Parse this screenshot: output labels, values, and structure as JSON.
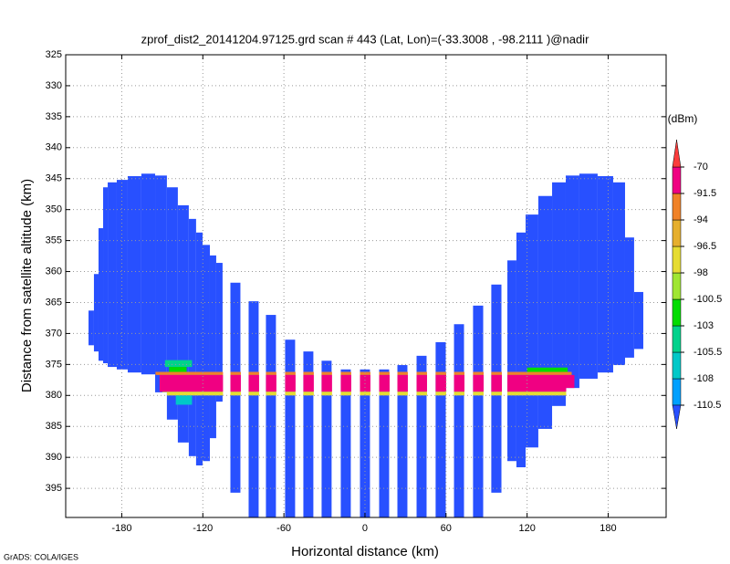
{
  "chart_data": {
    "type": "swath",
    "title": "zprof_dist2_20141204.97125.grd  scan # 443  (Lat, Lon)=(-33.3008 , -98.2111 )@nadir",
    "x_label": "Horizontal distance (km)",
    "y_label": "Distance from satellite altitude (km)",
    "footnote": "GrADS: COLA/IGES",
    "xlim": [
      -221.5,
      222.9
    ],
    "ylim": [
      325,
      399.7
    ],
    "y_reversed": true,
    "xticks": [
      -180,
      -120,
      -60,
      0,
      60,
      120,
      180
    ],
    "yticks": [
      325,
      330,
      335,
      340,
      345,
      350,
      355,
      360,
      365,
      370,
      375,
      380,
      385,
      390,
      395
    ],
    "grid": true,
    "swath_value": -112,
    "columns": [
      {
        "x": [
          -204.6,
          -200.6
        ],
        "y": [
          366.3,
          371.9
        ]
      },
      {
        "x": [
          -200.6,
          -197.2
        ],
        "y": [
          360.4,
          372.9
        ]
      },
      {
        "x": [
          -197.2,
          -193.8
        ],
        "y": [
          353.0,
          374.4
        ]
      },
      {
        "x": [
          -193.8,
          -190.4
        ],
        "y": [
          346.4,
          374.8
        ]
      },
      {
        "x": [
          -190.4,
          -183.7
        ],
        "y": [
          345.6,
          375.4
        ]
      },
      {
        "x": [
          -183.7,
          -175.6
        ],
        "y": [
          345.2,
          375.8
        ]
      },
      {
        "x": [
          -175.6,
          -165.5
        ],
        "y": [
          344.6,
          376.3
        ]
      },
      {
        "x": [
          -165.5,
          -155.3
        ],
        "y": [
          344.2,
          376.6
        ]
      },
      {
        "x": [
          -155.3,
          -146.6
        ],
        "y": [
          344.5,
          379.5
        ]
      },
      {
        "x": [
          -146.6,
          -138.5
        ],
        "y": [
          346.4,
          383.9
        ]
      },
      {
        "x": [
          -138.5,
          -130.4
        ],
        "y": [
          349.3,
          387.6
        ]
      },
      {
        "x": [
          -130.4,
          -125.0
        ],
        "y": [
          351.5,
          389.8
        ]
      },
      {
        "x": [
          -125.0,
          -120.2
        ],
        "y": [
          353.7,
          391.3
        ]
      },
      {
        "x": [
          -120.2,
          -114.8
        ],
        "y": [
          355.7,
          390.6
        ]
      },
      {
        "x": [
          -114.8,
          -110.1
        ],
        "y": [
          357.4,
          386.9
        ]
      },
      {
        "x": [
          -110.1,
          -105.4
        ],
        "y": [
          358.6,
          381.0
        ]
      },
      {
        "x": [
          -99.6,
          -92.2
        ],
        "y": [
          361.8,
          395.7
        ]
      },
      {
        "x": [
          -86.1,
          -78.7
        ],
        "y": [
          364.8,
          399.7
        ]
      },
      {
        "x": [
          -73.3,
          -65.9
        ],
        "y": [
          367.0,
          399.7
        ]
      },
      {
        "x": [
          -59.1,
          -51.7
        ],
        "y": [
          371.0,
          399.7
        ]
      },
      {
        "x": [
          -45.6,
          -38.2
        ],
        "y": [
          372.9,
          399.7
        ]
      },
      {
        "x": [
          -32.1,
          -24.7
        ],
        "y": [
          374.4,
          399.7
        ]
      },
      {
        "x": [
          -17.9,
          -10.5
        ],
        "y": [
          375.8,
          399.7
        ]
      },
      {
        "x": [
          -3.7,
          3.7
        ],
        "y": [
          375.8,
          399.7
        ]
      },
      {
        "x": [
          10.5,
          17.9
        ],
        "y": [
          375.8,
          399.7
        ]
      },
      {
        "x": [
          24.0,
          31.4
        ],
        "y": [
          375.1,
          399.7
        ]
      },
      {
        "x": [
          38.2,
          45.6
        ],
        "y": [
          373.6,
          399.7
        ]
      },
      {
        "x": [
          52.3,
          59.8
        ],
        "y": [
          371.4,
          399.7
        ]
      },
      {
        "x": [
          65.9,
          73.3
        ],
        "y": [
          368.5,
          399.7
        ]
      },
      {
        "x": [
          80.0,
          87.5
        ],
        "y": [
          365.5,
          399.7
        ]
      },
      {
        "x": [
          93.5,
          101.0
        ],
        "y": [
          362.1,
          395.7
        ]
      },
      {
        "x": [
          105.4,
          112.1
        ],
        "y": [
          358.2,
          390.6
        ]
      },
      {
        "x": [
          112.1,
          118.9
        ],
        "y": [
          353.7,
          391.6
        ]
      },
      {
        "x": [
          118.9,
          128.3
        ],
        "y": [
          350.8,
          388.4
        ]
      },
      {
        "x": [
          128.3,
          138.5
        ],
        "y": [
          347.8,
          385.4
        ]
      },
      {
        "x": [
          138.5,
          148.6
        ],
        "y": [
          345.6,
          381.7
        ]
      },
      {
        "x": [
          148.6,
          158.7
        ],
        "y": [
          344.5,
          378.8
        ]
      },
      {
        "x": [
          158.7,
          172.2
        ],
        "y": [
          344.2,
          377.3
        ]
      },
      {
        "x": [
          172.2,
          183.7
        ],
        "y": [
          344.6,
          376.3
        ]
      },
      {
        "x": [
          183.7,
          192.5
        ],
        "y": [
          345.6,
          375.1
        ]
      },
      {
        "x": [
          192.5,
          199.2
        ],
        "y": [
          354.5,
          373.9
        ]
      },
      {
        "x": [
          199.2,
          206.0
        ],
        "y": [
          363.3,
          372.5
        ]
      }
    ],
    "cells": [
      {
        "x": [
          -155,
          153
        ],
        "y": [
          376.2,
          376.7
        ],
        "value": -93
      },
      {
        "x": [
          -152,
          155
        ],
        "y": [
          376.7,
          379.4
        ],
        "value": -85
      },
      {
        "x": [
          -150,
          150
        ],
        "y": [
          379.4,
          380.0
        ],
        "value": -97
      },
      {
        "x": [
          -148,
          -128
        ],
        "y": [
          374.3,
          375.4
        ],
        "value": -104
      },
      {
        "x": [
          -145,
          -132
        ],
        "y": [
          375.4,
          376.2
        ],
        "value": -101
      },
      {
        "x": [
          -140,
          -128
        ],
        "y": [
          380.0,
          381.5
        ],
        "value": -107
      },
      {
        "x": [
          120,
          150
        ],
        "y": [
          375.5,
          376.2
        ],
        "value": -101
      }
    ],
    "colorbar": {
      "label": "(dBm)",
      "levels": [
        -110.5,
        -108,
        -105.5,
        -103,
        -100.5,
        -98,
        -96.5,
        -94,
        -91.5,
        -70
      ],
      "colors": [
        "#2850ff",
        "#00a0ff",
        "#00c8c8",
        "#00d28c",
        "#00dc00",
        "#a0e632",
        "#e6dc32",
        "#e6af2d",
        "#f08228",
        "#f00082",
        "#fa3c3c"
      ]
    }
  }
}
